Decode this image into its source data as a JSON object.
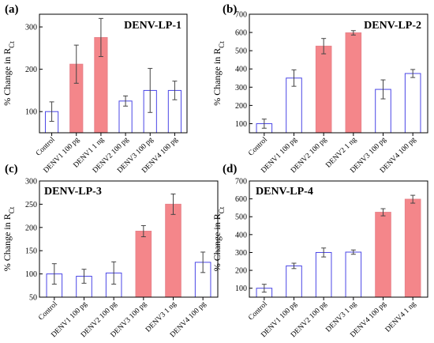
{
  "style": {
    "highlight_fill": "#f4868a",
    "highlight_edge": "#e8828a",
    "plain_edge": "#4a46e6",
    "plain_fill": "#ffffff",
    "error_bar_color": "#444444"
  },
  "chart_data": [
    {
      "type": "bar",
      "panel_label": "(a)",
      "title": "DENV-LP-1",
      "ylabel": "% Change in R",
      "ylabel_sub": "Ct",
      "ylim": [
        50,
        330
      ],
      "yticks": [
        100,
        200,
        300
      ],
      "categories": [
        "Control",
        "DENV1 100 pg",
        "DENV1 1 ng",
        "DENV2 100 pg",
        "DENV3 100 pg",
        "DENV4 100 pg"
      ],
      "values": [
        100,
        212,
        275,
        125,
        150,
        150
      ],
      "errors": [
        23,
        45,
        45,
        12,
        52,
        22
      ],
      "highlighted": [
        false,
        true,
        true,
        false,
        false,
        false
      ]
    },
    {
      "type": "bar",
      "panel_label": "(b)",
      "title": "DENV-LP-2",
      "ylabel": "% Change in R",
      "ylabel_sub": "Ct",
      "ylim": [
        50,
        700
      ],
      "yticks": [
        100,
        200,
        300,
        400,
        500,
        600,
        700
      ],
      "categories": [
        "Control",
        "DENV1 100 pg",
        "DENV2 100 pg",
        "DENV2 1 ng",
        "DENV3 100 pg",
        "DENV4 100 pg"
      ],
      "values": [
        100,
        350,
        525,
        598,
        288,
        375
      ],
      "errors": [
        25,
        45,
        42,
        12,
        52,
        22
      ],
      "highlighted": [
        false,
        false,
        true,
        true,
        false,
        false
      ]
    },
    {
      "type": "bar",
      "panel_label": "(c)",
      "title": "DENV-LP-3",
      "ylabel": "% Change in R",
      "ylabel_sub": "Ct",
      "ylim": [
        50,
        300
      ],
      "yticks": [
        50,
        100,
        150,
        200,
        250,
        300
      ],
      "categories": [
        "Control",
        "DENV1 100 pg",
        "DENV2 100 pg",
        "DENV3 100 pg",
        "DENV3 1 ng",
        "DENV4 100 pg"
      ],
      "values": [
        100,
        95,
        102,
        192,
        250,
        125
      ],
      "errors": [
        22,
        15,
        24,
        12,
        22,
        22
      ],
      "highlighted": [
        false,
        false,
        false,
        true,
        true,
        false
      ]
    },
    {
      "type": "bar",
      "panel_label": "(d)",
      "title": "DENV-LP-4",
      "ylabel": "% Change in R",
      "ylabel_sub": "Ct",
      "ylim": [
        50,
        700
      ],
      "yticks": [
        100,
        200,
        300,
        400,
        500,
        600,
        700
      ],
      "categories": [
        "Control",
        "DENV1 100 pg",
        "DENV2 100 pg",
        "DENV3 1 ng",
        "DENV4 100 pg",
        "DENV4 1 ng"
      ],
      "values": [
        100,
        225,
        300,
        302,
        525,
        598
      ],
      "errors": [
        22,
        15,
        25,
        12,
        20,
        22
      ],
      "highlighted": [
        false,
        false,
        false,
        false,
        true,
        true
      ]
    }
  ]
}
